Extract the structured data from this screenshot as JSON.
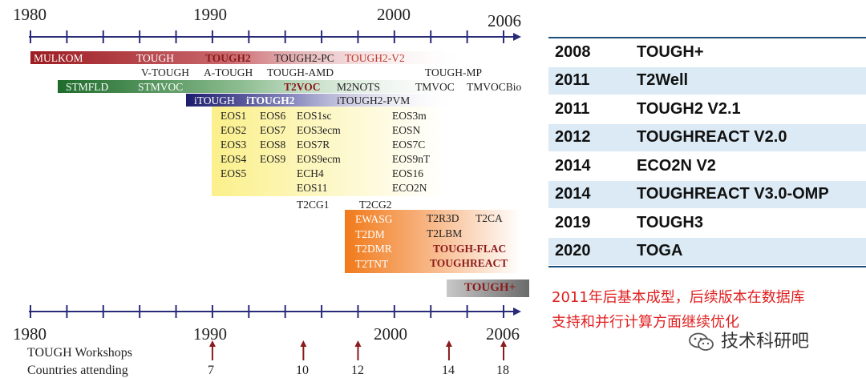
{
  "timeline_top": {
    "years": [
      "1980",
      "1990",
      "2000",
      "2006"
    ]
  },
  "bars": {
    "row1": [
      "MULKOM",
      "TOUGH",
      "TOUGH2",
      "TOUGH2-PC",
      "TOUGH2-V2"
    ],
    "row2": [
      "V-TOUGH",
      "A-TOUGH",
      "TOUGH-AMD",
      "TOUGH-MP"
    ],
    "row3": [
      "STMFLD",
      "STMVOC",
      "T2VOC",
      "M2NOTS",
      "TMVOC",
      "TMVOCBio"
    ],
    "row4": [
      "iTOUGH",
      "iTOUGH2",
      "iTOUGH2-PVM"
    ]
  },
  "eos": {
    "col1": [
      "EOS1",
      "EOS2",
      "EOS3",
      "EOS4",
      "EOS5"
    ],
    "col2": [
      "EOS6",
      "EOS7",
      "EOS8",
      "EOS9"
    ],
    "col3": [
      "EOS1sc",
      "EOS3ecm",
      "EOS7R",
      "EOS9ecm",
      "ECH4",
      "EOS11"
    ],
    "col4": [
      "EOS3m",
      "EOSN",
      "EOS7C",
      "EOS9nT",
      "EOS16",
      "ECO2N"
    ]
  },
  "t2cg": [
    "T2CG1",
    "T2CG2"
  ],
  "orange": {
    "left": [
      "EWASG",
      "T2DM",
      "T2DMR",
      "T2TNT"
    ],
    "right_top": [
      "T2R3D",
      "T2CA",
      "T2LBM"
    ],
    "right_bold": [
      "TOUGH-FLAC",
      "TOUGHREACT"
    ]
  },
  "tough_plus": "TOUGH+",
  "timeline_bottom": {
    "years": [
      "1980",
      "1990",
      "2000",
      "2006"
    ],
    "row_labels": [
      "TOUGH Workshops",
      "Countries attending"
    ],
    "workshop_counts": [
      "7",
      "10",
      "12",
      "14",
      "18"
    ]
  },
  "table": [
    {
      "year": "2008",
      "name": "TOUGH+"
    },
    {
      "year": "2011",
      "name": "T2Well"
    },
    {
      "year": "2011",
      "name": "TOUGH2 V2.1"
    },
    {
      "year": "2012",
      "name": "TOUGHREACT V2.0"
    },
    {
      "year": "2014",
      "name": "ECO2N V2"
    },
    {
      "year": "2014",
      "name": "TOUGHREACT V3.0-OMP"
    },
    {
      "year": "2019",
      "name": "TOUGH3"
    },
    {
      "year": "2020",
      "name": "TOGA"
    }
  ],
  "note": {
    "line1": "2011年后基本成型，后续版本在数据库",
    "line2": "支持和并行计算方面继续优化"
  },
  "watermark": "技术科研吧",
  "colors": {
    "axis": "#2a2a7a",
    "arrow": "#8b1a1a",
    "note": "#e02020",
    "table_stripe": "#dbeaf4"
  }
}
